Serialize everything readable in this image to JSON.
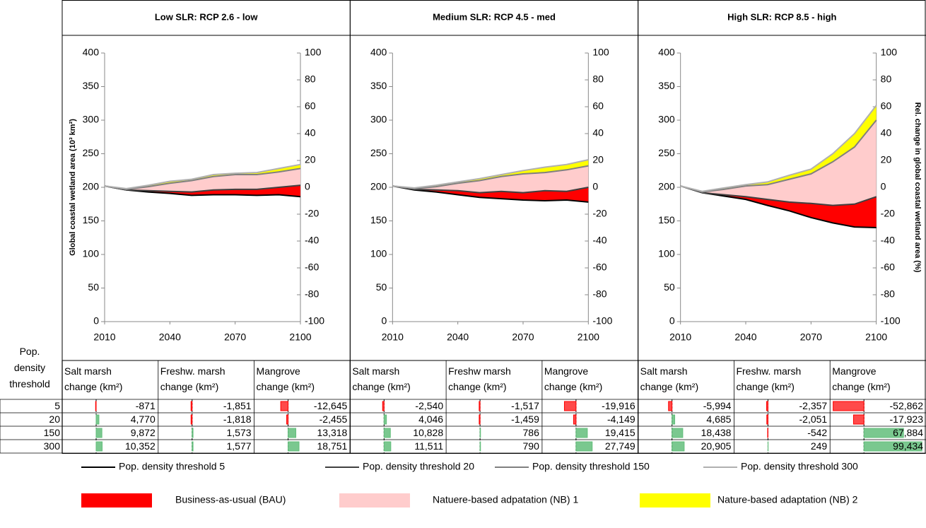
{
  "panels": [
    {
      "chart_data": {
        "type": "line",
        "title": "Low SLR: RCP 2.6 - low",
        "ylabel": "Global coastal wetland area (10³ km²)",
        "x": [
          2010,
          2020,
          2030,
          2040,
          2050,
          2060,
          2070,
          2080,
          2090,
          2100
        ],
        "xlim": [
          2010,
          2100
        ],
        "xticks": [
          2010,
          2040,
          2070,
          2100
        ],
        "ylim": [
          0,
          400
        ],
        "yticks": [
          0,
          50,
          100,
          150,
          200,
          250,
          300,
          350,
          400
        ],
        "y2lim": [
          -100,
          100
        ],
        "y2ticks": [
          -100,
          -80,
          -60,
          -40,
          -20,
          0,
          20,
          40,
          60,
          80,
          100
        ],
        "series": [
          {
            "values": [
              202,
              196,
              193,
              191,
              188,
              189,
              189,
              188,
              189,
              186
            ]
          },
          {
            "values": [
              202,
              196,
              195,
              194,
              193,
              196,
              197,
              197,
              200,
              203
            ]
          },
          {
            "values": [
              202,
              197,
              201,
              206,
              210,
              216,
              219,
              219,
              223,
              228
            ]
          },
          {
            "values": [
              202,
              198,
              203,
              209,
              212,
              219,
              221,
              222,
              228,
              234
            ]
          }
        ]
      },
      "table": {
        "columns": [
          [
            "Salt marsh",
            "change (km²)"
          ],
          [
            "Freshw. marsh",
            "change (km²)"
          ],
          [
            "Mangrove",
            "change (km²)"
          ]
        ],
        "values": [
          [
            -871,
            -1851,
            -12645
          ],
          [
            4770,
            -1818,
            -2455
          ],
          [
            9872,
            1573,
            13318
          ],
          [
            10352,
            1577,
            18751
          ]
        ],
        "value_labels": [
          [
            "-871",
            "-1,851",
            "-12,645"
          ],
          [
            "4,770",
            "-1,818",
            "-2,455"
          ],
          [
            "9,872",
            "1,573",
            "13,318"
          ],
          [
            "10,352",
            "1,577",
            "18,751"
          ]
        ]
      }
    },
    {
      "chart_data": {
        "type": "line",
        "title": "Medium SLR: RCP 4.5 - med",
        "x": [
          2010,
          2020,
          2030,
          2040,
          2050,
          2060,
          2070,
          2080,
          2090,
          2100
        ],
        "xlim": [
          2010,
          2100
        ],
        "xticks": [
          2010,
          2040,
          2070,
          2100
        ],
        "ylim": [
          0,
          400
        ],
        "yticks": [
          0,
          50,
          100,
          150,
          200,
          250,
          300,
          350,
          400
        ],
        "y2lim": [
          -100,
          100
        ],
        "y2ticks": [
          -100,
          -80,
          -60,
          -40,
          -20,
          0,
          20,
          40,
          60,
          80,
          100
        ],
        "series": [
          {
            "values": [
              202,
              196,
              193,
              189,
              185,
              183,
              181,
              180,
              181,
              178
            ]
          },
          {
            "values": [
              202,
              197,
              196,
              195,
              192,
              194,
              192,
              195,
              194,
              200
            ]
          },
          {
            "values": [
              202,
              198,
              201,
              206,
              210,
              216,
              220,
              222,
              226,
              232
            ]
          },
          {
            "values": [
              202,
              199,
              203,
              208,
              213,
              219,
              225,
              230,
              234,
              241
            ]
          }
        ]
      },
      "table": {
        "columns": [
          [
            "Salt marsh",
            "change (km²)"
          ],
          [
            "Freshw marsh",
            "change (km²)"
          ],
          [
            "Mangrove",
            "change (km²)"
          ]
        ],
        "values": [
          [
            -2540,
            -1517,
            -19916
          ],
          [
            4046,
            -1459,
            -4149
          ],
          [
            10828,
            786,
            19415
          ],
          [
            11511,
            790,
            27749
          ]
        ],
        "value_labels": [
          [
            "-2,540",
            "-1,517",
            "-19,916"
          ],
          [
            "4,046",
            "-1,459",
            "-4,149"
          ],
          [
            "10,828",
            "786",
            "19,415"
          ],
          [
            "11,511",
            "790",
            "27,749"
          ]
        ]
      }
    },
    {
      "chart_data": {
        "type": "line",
        "title": "High SLR: RCP 8.5 - high",
        "y2label": "Rel. change in global coastal wetland area (%)",
        "x": [
          2010,
          2020,
          2030,
          2040,
          2050,
          2060,
          2070,
          2080,
          2090,
          2100
        ],
        "xlim": [
          2010,
          2100
        ],
        "xticks": [
          2010,
          2040,
          2070,
          2100
        ],
        "ylim": [
          0,
          400
        ],
        "yticks": [
          0,
          50,
          100,
          150,
          200,
          250,
          300,
          350,
          400
        ],
        "y2lim": [
          -100,
          100
        ],
        "y2ticks": [
          -100,
          -80,
          -60,
          -40,
          -20,
          0,
          20,
          40,
          60,
          80,
          100
        ],
        "series": [
          {
            "values": [
              202,
              192,
              187,
              182,
              173,
              165,
              155,
              147,
              141,
              140
            ]
          },
          {
            "values": [
              202,
              192,
              189,
              186,
              182,
              178,
              176,
              173,
              175,
              186
            ]
          },
          {
            "values": [
              202,
              193,
              197,
              202,
              204,
              212,
              220,
              238,
              260,
              300
            ]
          },
          {
            "values": [
              202,
              194,
              199,
              204,
              208,
              218,
              227,
              250,
              280,
              322
            ]
          }
        ]
      },
      "table": {
        "columns": [
          [
            "Salt marsh",
            "change (km²)"
          ],
          [
            "Freshw. marsh",
            "change (km²)"
          ],
          [
            "Mangrove",
            "change (km²)"
          ]
        ],
        "values": [
          [
            -5994,
            -2357,
            -52862
          ],
          [
            4685,
            -2051,
            -17923
          ],
          [
            18438,
            -542,
            67884
          ],
          [
            20905,
            249,
            99434
          ]
        ],
        "value_labels": [
          [
            "-5,994",
            "-2,357",
            "-52,862"
          ],
          [
            "4,685",
            "-2,051",
            "-17,923"
          ],
          [
            "18,438",
            "-542",
            "67,884"
          ],
          [
            "20,905",
            "249",
            "99,434"
          ]
        ]
      }
    }
  ],
  "row_header": [
    "Pop.",
    "density",
    "threshold"
  ],
  "thresholds": [
    5,
    20,
    150,
    300
  ],
  "legend": {
    "lines": [
      {
        "name": "Pop. density threshold 5",
        "color": "#000000"
      },
      {
        "name": "Pop. density threshold 20",
        "color": "#404040"
      },
      {
        "name": "Pop. density threshold 150",
        "color": "#808080"
      },
      {
        "name": "Pop. density threshold 300",
        "color": "#b0b0b0"
      }
    ],
    "areas": [
      {
        "name": "Business-as-usual (BAU)",
        "color": "#ff0000"
      },
      {
        "name": "Natuere-based adpatation (NB) 1",
        "color": "#ffcccc"
      },
      {
        "name": "Nature-based adaptation (NB) 2",
        "color": "#ffff00"
      }
    ]
  }
}
